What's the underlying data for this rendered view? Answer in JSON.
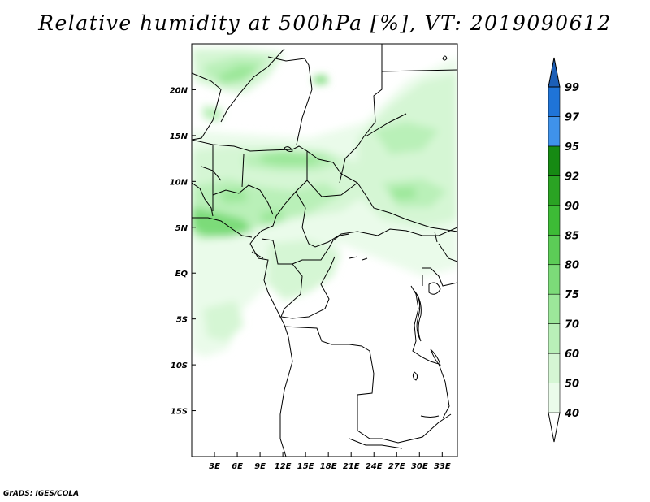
{
  "title": "Relative humidity at 500hPa [%], VT: 2019090612",
  "credit": "GrADS: IGES/COLA",
  "map": {
    "lon_range": [
      0,
      35
    ],
    "lat_range": [
      -20,
      25
    ],
    "lat_ticks": [
      "20N",
      "15N",
      "10N",
      "5N",
      "EQ",
      "5S",
      "10S",
      "15S"
    ],
    "lon_ticks": [
      "3E",
      "6E",
      "9E",
      "12E",
      "15E",
      "18E",
      "21E",
      "24E",
      "27E",
      "30E",
      "33E"
    ],
    "frame_color": "#000000"
  },
  "colorbar": {
    "labels": [
      "40",
      "50",
      "60",
      "70",
      "75",
      "80",
      "85",
      "90",
      "92",
      "95",
      "97",
      "99"
    ],
    "colors": [
      "#ffffff",
      "#eafbea",
      "#d5f6d4",
      "#b9f0b8",
      "#9ce79a",
      "#7cdb79",
      "#5ccc57",
      "#3dbb36",
      "#2aa323",
      "#168a13",
      "#3f92ea",
      "#1f74d8",
      "#1c5fb7"
    ]
  }
}
